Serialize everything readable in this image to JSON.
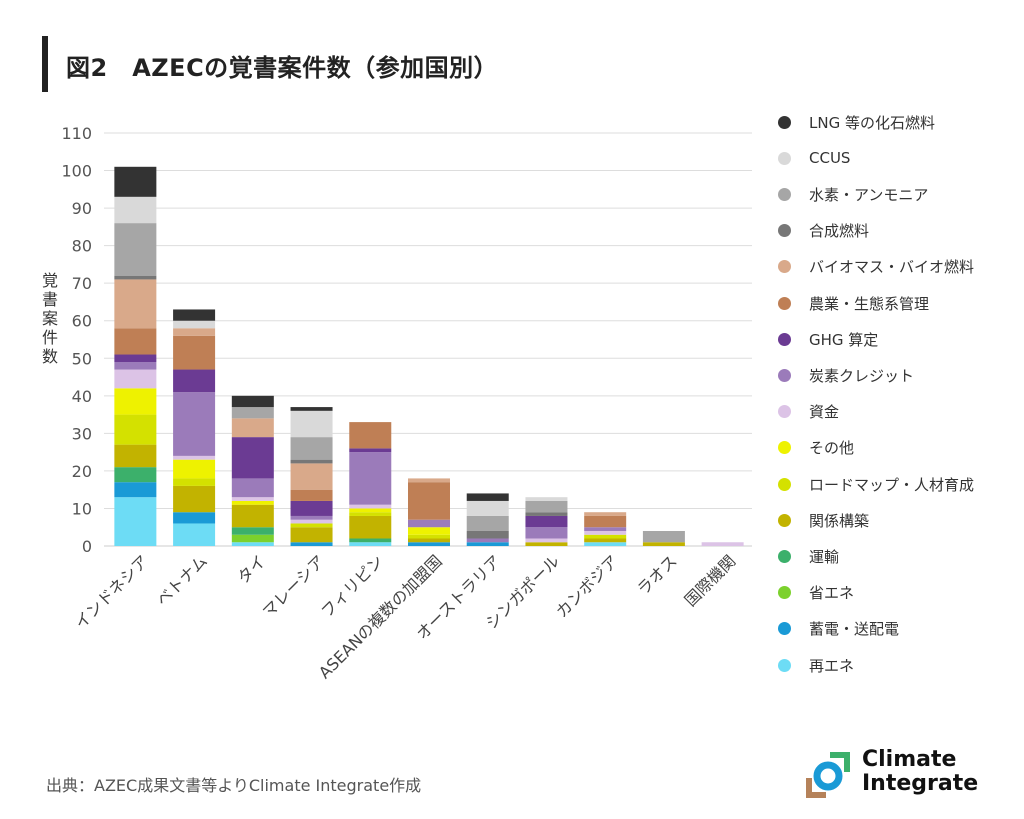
{
  "title": "図2　AZECの覚書案件数（参加国別）",
  "source": "出典：AZEC成果文書等よりClimate Integrate作成",
  "logo": {
    "line1": "Climate",
    "line2": "Integrate"
  },
  "colors": {
    "axis_text": "#555555",
    "grid": "#dddddd",
    "logo_blue": "#1a9ad6",
    "logo_green": "#3cb06b",
    "logo_brown": "#b5825a"
  },
  "chart_data": {
    "type": "bar",
    "stacked": true,
    "title": "図2　AZECの覚書案件数（参加国別）",
    "xlabel": "",
    "ylabel": "覚書案件数",
    "ylim": [
      0,
      110
    ],
    "yticks": [
      0,
      10,
      20,
      30,
      40,
      50,
      60,
      70,
      80,
      90,
      100,
      110
    ],
    "grid": true,
    "legend_position": "right",
    "categories": [
      "インドネシア",
      "ベトナム",
      "タイ",
      "マレーシア",
      "フィリピン",
      "ASEANの複数の加盟国",
      "オーストラリア",
      "シンガポール",
      "カンボジア",
      "ラオス",
      "国際機関"
    ],
    "series": [
      {
        "name": "再エネ",
        "color": "#6ddcf5",
        "values": [
          13,
          6,
          1,
          0,
          1,
          0,
          0,
          0,
          1,
          0,
          0
        ]
      },
      {
        "name": "蓄電・送配電",
        "color": "#1a9ad6",
        "values": [
          4,
          3,
          0,
          1,
          0,
          1,
          1,
          0,
          0,
          0,
          0
        ]
      },
      {
        "name": "省エネ",
        "color": "#7cd12d",
        "values": [
          0,
          0,
          2,
          0,
          0,
          0,
          0,
          0,
          0,
          0,
          0
        ]
      },
      {
        "name": "運輸",
        "color": "#3cb06b",
        "values": [
          4,
          0,
          2,
          0,
          1,
          0,
          0,
          0,
          0,
          0,
          0
        ]
      },
      {
        "name": "関係構築",
        "color": "#c2b300",
        "values": [
          6,
          7,
          6,
          4,
          6,
          1,
          0,
          1,
          1,
          1,
          0
        ]
      },
      {
        "name": "ロードマップ・人材育成",
        "color": "#d4e100",
        "values": [
          8,
          2,
          0,
          1,
          1,
          1,
          0,
          0,
          1,
          0,
          0
        ]
      },
      {
        "name": "その他",
        "color": "#eef200",
        "values": [
          7,
          5,
          1,
          0,
          1,
          2,
          0,
          0,
          0,
          0,
          0
        ]
      },
      {
        "name": "資金",
        "color": "#dcc3e6",
        "values": [
          5,
          1,
          1,
          1,
          1,
          0,
          0,
          1,
          1,
          0,
          1
        ]
      },
      {
        "name": "炭素クレジット",
        "color": "#9b7bba",
        "values": [
          2,
          17,
          5,
          1,
          14,
          2,
          1,
          3,
          1,
          0,
          0
        ]
      },
      {
        "name": "GHG 算定",
        "color": "#6b3b93",
        "values": [
          2,
          6,
          11,
          4,
          1,
          0,
          0,
          3,
          0,
          0,
          0
        ]
      },
      {
        "name": "農業・生態系管理",
        "color": "#bf7f55",
        "values": [
          7,
          9,
          0,
          3,
          7,
          10,
          0,
          0,
          3,
          0,
          0
        ]
      },
      {
        "name": "バイオマス・バイオ燃料",
        "color": "#d9a98a",
        "values": [
          13,
          2,
          5,
          7,
          0,
          1,
          0,
          0,
          1,
          0,
          0
        ]
      },
      {
        "name": "合成燃料",
        "color": "#777777",
        "values": [
          1,
          0,
          0,
          1,
          0,
          0,
          2,
          1,
          0,
          0,
          0
        ]
      },
      {
        "name": "水素・アンモニア",
        "color": "#a6a6a6",
        "values": [
          14,
          0,
          3,
          6,
          0,
          0,
          4,
          3,
          0,
          3,
          0
        ]
      },
      {
        "name": "CCUS",
        "color": "#d9d9d9",
        "values": [
          7,
          2,
          0,
          7,
          0,
          0,
          4,
          1,
          0,
          0,
          0
        ]
      },
      {
        "name": "LNG 等の化石燃料",
        "color": "#333333",
        "values": [
          8,
          3,
          3,
          1,
          0,
          0,
          2,
          0,
          0,
          0,
          0
        ]
      }
    ]
  }
}
